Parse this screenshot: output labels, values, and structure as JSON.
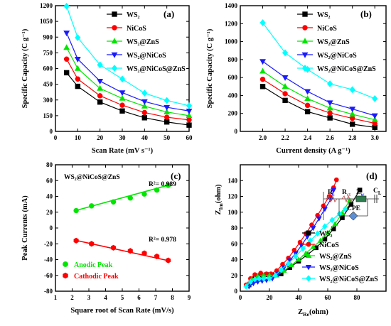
{
  "colors": {
    "WS2": "#000000",
    "NiCoS": "#ff0000",
    "WS2@ZnS": "#00e600",
    "WS2@NiCoS": "#1a1aff",
    "WS2@NiCoS@ZnS": "#00ffff",
    "anodic": "#00e600",
    "cathodic": "#ff0000",
    "circuit": "#c05050"
  },
  "chart_data": [
    {
      "id": "a",
      "type": "line",
      "panel_label": "(a)",
      "xlabel": "Scan Rate (mV s⁻¹)",
      "ylabel": "Specific Capacity (C g⁻¹)",
      "xlim": [
        0,
        60
      ],
      "ylim": [
        0,
        1200
      ],
      "xticks": [
        0,
        10,
        20,
        30,
        40,
        50,
        60
      ],
      "yticks": [
        0,
        150,
        300,
        450,
        600,
        750,
        900,
        1050,
        1200
      ],
      "legend_position": "top-right",
      "x": [
        5,
        10,
        20,
        30,
        40,
        50,
        60
      ],
      "series": [
        {
          "name": "WS₂",
          "key": "WS2",
          "marker": "square",
          "values": [
            560,
            430,
            280,
            195,
            130,
            90,
            60
          ]
        },
        {
          "name": "NiCoS",
          "key": "NiCoS",
          "marker": "circle",
          "values": [
            690,
            500,
            340,
            250,
            180,
            135,
            110
          ]
        },
        {
          "name": "WS₂@ZnS",
          "key": "WS2@ZnS",
          "marker": "triangle-up",
          "values": [
            800,
            600,
            410,
            315,
            240,
            185,
            150
          ]
        },
        {
          "name": "WS₂@NiCoS",
          "key": "WS2@NiCoS",
          "marker": "triangle-down",
          "values": [
            940,
            690,
            480,
            370,
            285,
            230,
            195
          ]
        },
        {
          "name": "WS₂@NiCoS@ZnS",
          "key": "WS2@NiCoS@ZnS",
          "marker": "diamond",
          "values": [
            1195,
            895,
            635,
            500,
            365,
            295,
            245
          ]
        }
      ]
    },
    {
      "id": "b",
      "type": "line",
      "panel_label": "(b)",
      "xlabel": "Current density (A g⁻¹)",
      "ylabel": "Specific Capacity (C g⁻¹)",
      "xlim": [
        1.8,
        3.1
      ],
      "ylim": [
        0,
        1400
      ],
      "xticks": [
        2.0,
        2.2,
        2.4,
        2.6,
        2.8,
        3.0
      ],
      "yticks": [
        0,
        200,
        400,
        600,
        800,
        1000,
        1200,
        1400
      ],
      "legend_position": "top-right",
      "x": [
        2.0,
        2.2,
        2.4,
        2.6,
        2.8,
        3.0
      ],
      "series": [
        {
          "name": "WS₂",
          "key": "WS2",
          "marker": "square",
          "values": [
            500,
            345,
            220,
            150,
            80,
            45
          ]
        },
        {
          "name": "NiCoS",
          "key": "NiCoS",
          "marker": "circle",
          "values": [
            580,
            420,
            290,
            205,
            145,
            90
          ]
        },
        {
          "name": "WS₂@ZnS",
          "key": "WS2@ZnS",
          "marker": "triangle-up",
          "values": [
            670,
            500,
            365,
            260,
            190,
            130
          ]
        },
        {
          "name": "WS₂@NiCoS",
          "key": "WS2@NiCoS",
          "marker": "triangle-down",
          "values": [
            780,
            600,
            445,
            320,
            250,
            175
          ]
        },
        {
          "name": "WS₂@NiCoS@ZnS",
          "key": "WS2@NiCoS@ZnS",
          "marker": "diamond",
          "values": [
            1210,
            875,
            690,
            530,
            465,
            365
          ]
        }
      ]
    },
    {
      "id": "c",
      "type": "scatter",
      "panel_label": "(c)",
      "title": "WS₂@NiCoS@ZnS",
      "xlabel": "Square root of Scan Rate (mV/s)",
      "ylabel": "Peak Currents (mA)",
      "xlim": [
        1,
        9
      ],
      "ylim": [
        -80,
        80
      ],
      "xticks": [
        1,
        2,
        3,
        4,
        5,
        6,
        7,
        8,
        9
      ],
      "yticks": [
        -80,
        -60,
        -40,
        -20,
        0,
        20,
        40,
        60,
        80
      ],
      "legend_position": "bottom-left",
      "x": [
        2.24,
        3.16,
        4.47,
        5.48,
        6.32,
        7.07,
        7.75
      ],
      "series": [
        {
          "name": "Anodic Peak",
          "key": "anodic",
          "marker": "circle",
          "values": [
            22,
            28,
            33,
            38,
            43,
            48,
            54
          ],
          "fit_line": [
            [
              2.2,
              22
            ],
            [
              7.9,
              55
            ]
          ],
          "r2_label": "R²= 0.989"
        },
        {
          "name": "Cathodic Peak",
          "key": "cathodic",
          "marker": "hexagon",
          "values": [
            -16,
            -20,
            -25,
            -29,
            -32,
            -36,
            -41
          ],
          "fit_line": [
            [
              2.2,
              -15.5
            ],
            [
              7.9,
              -42
            ]
          ],
          "r2_label": "R²= 0.978"
        }
      ]
    },
    {
      "id": "d",
      "type": "line",
      "panel_label": "(d)",
      "xlabel": "Z₀ₑ(ohm)",
      "xlabel_main": "Z",
      "xlabel_sub": "Re",
      "xlabel_unit": "(ohm)",
      "ylabel_main": "Z",
      "ylabel_sub": "Im",
      "ylabel_unit": "(ohm)",
      "xlim": [
        0,
        100
      ],
      "ylim": [
        0,
        160
      ],
      "xticks": [
        0,
        20,
        40,
        60,
        80
      ],
      "yticks": [
        0,
        20,
        40,
        60,
        80,
        100,
        120,
        140
      ],
      "legend_position": "bottom-right",
      "circuit_labels": {
        "rs": "Rₛ",
        "rct": "Rₑₜ",
        "zw": "Zᵂ",
        "cl": "Cₗ",
        "cpe": "CPE"
      },
      "circuit_text": {
        "rs_main": "R",
        "rs_sub": "s",
        "rct_main": "R",
        "rct_sub": "ct",
        "zw_main": "Z",
        "zw_sub": "w",
        "cl_main": "C",
        "cl_sub": "L",
        "cpe": "CPE"
      },
      "series": [
        {
          "name": "WS₂",
          "key": "WS2",
          "marker": "square",
          "x": [
            6,
            10,
            14,
            18,
            22,
            28,
            34,
            40,
            46,
            52,
            58,
            64,
            70,
            76,
            82
          ],
          "values": [
            8,
            16,
            20,
            21,
            20,
            22,
            30,
            38,
            46,
            55,
            66,
            79,
            93,
            110,
            128
          ]
        },
        {
          "name": "NiCoS",
          "key": "NiCoS",
          "marker": "circle",
          "x": [
            4,
            7,
            10,
            14,
            18,
            21,
            25,
            29,
            33,
            37,
            41,
            45,
            49,
            53,
            57,
            61,
            64,
            66
          ],
          "values": [
            8,
            16,
            21,
            23,
            22,
            22,
            26,
            34,
            42,
            52,
            62,
            73,
            84,
            96,
            108,
            120,
            131,
            141
          ]
        },
        {
          "name": "WS₂@ZnS",
          "key": "WS2@ZnS",
          "marker": "triangle-up",
          "x": [
            5,
            8,
            12,
            16,
            20,
            25,
            30,
            35,
            40,
            45,
            50,
            55,
            60,
            65,
            70,
            75
          ],
          "values": [
            8,
            15,
            19,
            20,
            20,
            20,
            26,
            33,
            40,
            48,
            56,
            64,
            74,
            85,
            99,
            115
          ]
        },
        {
          "name": "WS₂@NiCoS",
          "key": "WS2@NiCoS",
          "marker": "triangle-down",
          "x": [
            6,
            9,
            12,
            15,
            18,
            22,
            26,
            30,
            34,
            38,
            42,
            46,
            50,
            54,
            58,
            62,
            64
          ],
          "values": [
            6,
            10,
            12,
            13,
            14,
            16,
            22,
            30,
            39,
            48,
            58,
            69,
            80,
            92,
            104,
            116,
            128
          ]
        },
        {
          "name": "WS₂@NiCoS@ZnS",
          "key": "WS2@NiCoS@ZnS",
          "marker": "diamond",
          "x": [
            4,
            7,
            10,
            13,
            16,
            20,
            24,
            28,
            33,
            38,
            43,
            48,
            53,
            58,
            63,
            68,
            72
          ],
          "values": [
            6,
            12,
            15,
            16,
            16,
            16,
            20,
            27,
            35,
            44,
            54,
            64,
            73,
            82,
            90,
            98,
            104
          ]
        }
      ]
    }
  ]
}
